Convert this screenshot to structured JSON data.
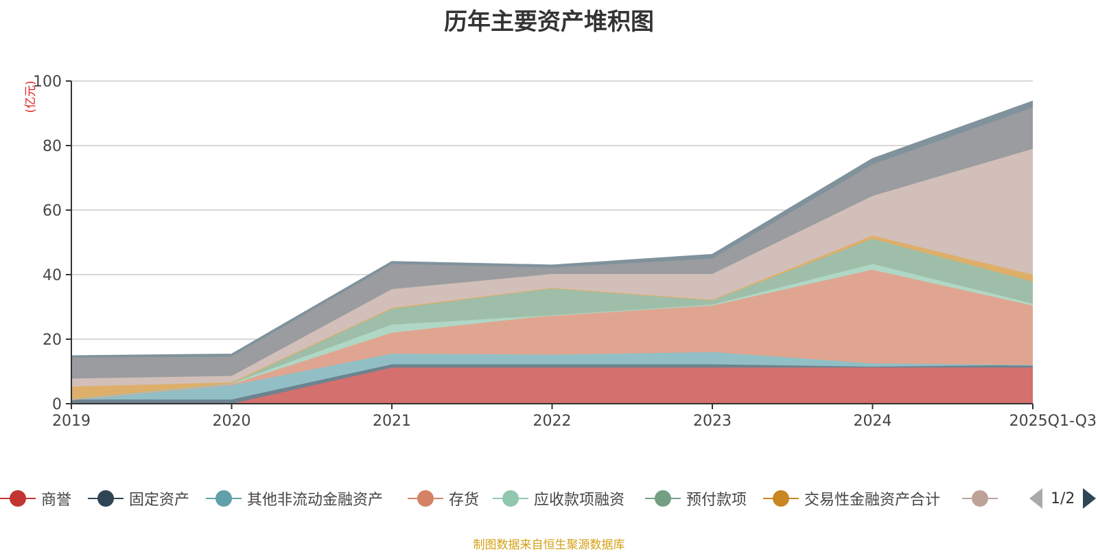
{
  "page": {
    "title": "历年主要资产堆积图",
    "source": "制图数据来自恒生聚源数据库"
  },
  "legend": {
    "page": "1/2"
  },
  "chart_data": {
    "type": "area",
    "stacked": true,
    "title": "历年主要资产堆积图",
    "ylabel": "(亿元)",
    "xlabel": "",
    "ylim": [
      0,
      100
    ],
    "yticks": [
      0,
      20,
      40,
      60,
      80,
      100
    ],
    "grid": true,
    "legend_position": "bottom",
    "categories": [
      "2019",
      "2020",
      "2021",
      "2022",
      "2023",
      "2024",
      "2025Q1-Q3"
    ],
    "series": [
      {
        "name": "商誉",
        "color": "#c23531",
        "fill": "#d4706e",
        "values": [
          0,
          0,
          11.2,
          11.2,
          11.2,
          11.2,
          11.2
        ],
        "legend": true
      },
      {
        "name": "固定资产",
        "color": "#2f4554",
        "fill": "#6d8390",
        "values": [
          1.3,
          1.3,
          1.0,
          1.0,
          1.0,
          0.3,
          0.8
        ],
        "legend": true
      },
      {
        "name": "其他非流动金融资产",
        "color": "#61a0a8",
        "fill": "#91bfc5",
        "values": [
          0,
          4.4,
          3.3,
          3.0,
          3.8,
          1.0,
          0
        ],
        "legend": true
      },
      {
        "name": "存货",
        "color": "#d48265",
        "fill": "#e0a590",
        "values": [
          0,
          0.3,
          6.5,
          12.2,
          14.4,
          29.0,
          18.4
        ],
        "legend": true
      },
      {
        "name": "应收款项融资",
        "color": "#91c7ae",
        "fill": "#b0d7c5",
        "values": [
          0.2,
          0.3,
          2.5,
          0,
          0.3,
          1.8,
          0.6
        ],
        "legend": true
      },
      {
        "name": "预付款项",
        "color": "#749f83",
        "fill": "#9fbea9",
        "values": [
          0,
          0,
          4.9,
          8.3,
          1.3,
          7.8,
          6.8
        ],
        "legend": true
      },
      {
        "name": "交易性金融资产合计",
        "color": "#ca8622",
        "fill": "#deaf6a",
        "values": [
          3.8,
          0.3,
          0.3,
          0.2,
          0.2,
          1.0,
          2.2
        ],
        "legend": true
      },
      {
        "name": "",
        "color": "#bda29a",
        "fill": "#d2bfb9",
        "values": [
          2.5,
          2.0,
          5.8,
          4.3,
          8.0,
          12.3,
          39.0
        ],
        "legend": true
      },
      {
        "name": "",
        "color": "#6e7074",
        "fill": "#9a9c9f",
        "values": [
          6.5,
          6.0,
          7.8,
          2.0,
          4.8,
          9.8,
          12.8
        ],
        "legend": false
      },
      {
        "name": "",
        "color": "#546570",
        "fill": "#80929c",
        "values": [
          0.5,
          0.7,
          0.7,
          0.7,
          1.2,
          1.7,
          1.9
        ],
        "legend": false
      }
    ]
  }
}
